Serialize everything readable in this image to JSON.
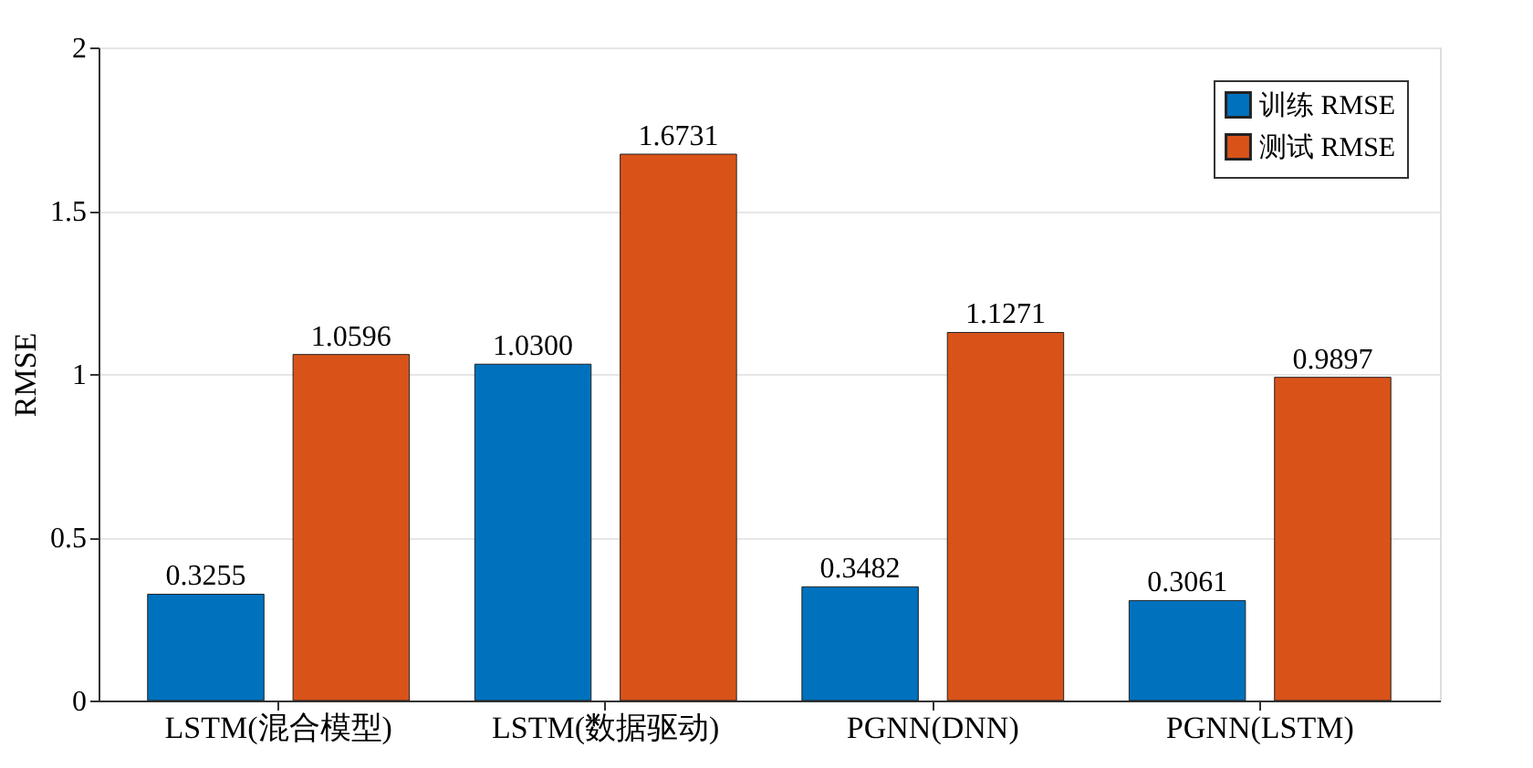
{
  "chart_data": {
    "type": "bar",
    "ylabel": "RMSE",
    "categories": [
      "LSTM(混合模型)",
      "LSTM(数据驱动)",
      "PGNN(DNN)",
      "PGNN(LSTM)"
    ],
    "series": [
      {
        "name": "训练 RMSE",
        "color": "#0072bd",
        "values": [
          0.3255,
          1.03,
          0.3482,
          0.3061
        ],
        "value_labels": [
          "0.3255",
          "1.0300",
          "0.3482",
          "0.3061"
        ]
      },
      {
        "name": "测试 RMSE",
        "color": "#d95319",
        "values": [
          1.0596,
          1.6731,
          1.1271,
          0.9897
        ],
        "value_labels": [
          "1.0596",
          "1.6731",
          "1.1271",
          "0.9897"
        ]
      }
    ],
    "ylim": [
      0,
      2
    ],
    "yticks": [
      0,
      0.5,
      1,
      1.5,
      2
    ],
    "grid": "y",
    "legend": "top right"
  }
}
